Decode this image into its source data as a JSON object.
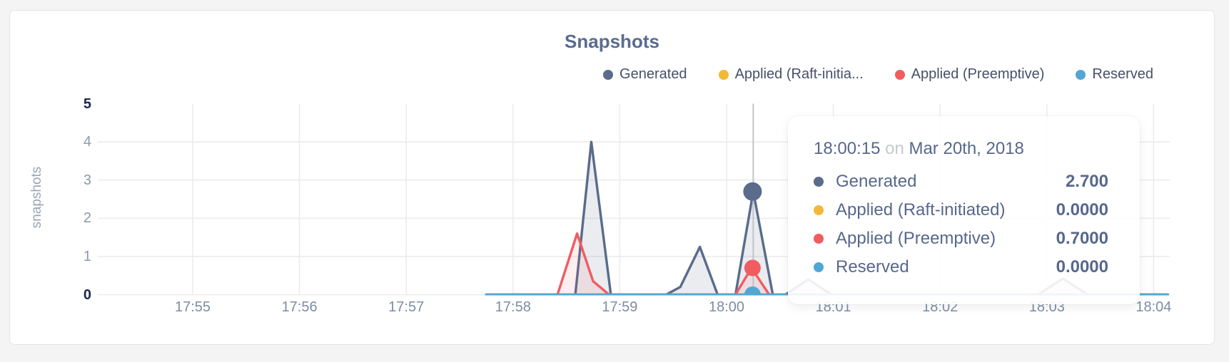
{
  "chart_card": {
    "title": "Snapshots"
  },
  "chart_data": {
    "type": "area",
    "title": "Snapshots",
    "xlabel": "",
    "ylabel": "snapshots",
    "ylim": [
      0,
      5
    ],
    "y_ticks": [
      5,
      4,
      3,
      2,
      1,
      0
    ],
    "y_ticks_bold": [
      5,
      0
    ],
    "x_ticks": [
      "17:55",
      "17:56",
      "17:57",
      "17:58",
      "17:59",
      "18:00",
      "18:01",
      "18:02",
      "18:03",
      "18:04"
    ],
    "x_units": "seconds after 17:55:00",
    "grid": "on",
    "legend_position": "top-right",
    "series": [
      {
        "name": "Generated",
        "legend_label": "Generated",
        "color": "#5a6b8c",
        "fill": "rgba(90,107,140,0.13)",
        "points": [
          [
            165,
            0
          ],
          [
            215,
            0
          ],
          [
            224,
            4.0
          ],
          [
            235,
            0
          ],
          [
            266,
            0
          ],
          [
            274,
            0.2
          ],
          [
            285,
            1.25
          ],
          [
            295,
            0
          ],
          [
            305,
            0
          ],
          [
            315,
            2.7
          ],
          [
            326,
            0
          ],
          [
            333,
            0
          ],
          [
            346,
            0.4
          ],
          [
            359,
            0
          ],
          [
            475,
            0
          ],
          [
            489,
            0.42
          ],
          [
            503,
            0
          ],
          [
            548,
            0
          ]
        ]
      },
      {
        "name": "Applied (Raft-initiated)",
        "legend_label": "Applied (Raft-initia...",
        "color": "#f2b838",
        "fill": "none",
        "points": [
          [
            165,
            0
          ],
          [
            548,
            0
          ]
        ]
      },
      {
        "name": "Applied (Preemptive)",
        "legend_label": "Applied (Preemptive)",
        "color": "#f05c60",
        "fill": "rgba(240,92,96,0.10)",
        "points": [
          [
            165,
            0
          ],
          [
            205,
            0
          ],
          [
            216,
            1.6
          ],
          [
            225,
            0.35
          ],
          [
            234,
            0
          ],
          [
            305,
            0
          ],
          [
            314,
            0.7
          ],
          [
            324,
            0
          ],
          [
            548,
            0
          ]
        ]
      },
      {
        "name": "Reserved",
        "legend_label": "Reserved",
        "color": "#51a6d4",
        "fill": "none",
        "points": [
          [
            165,
            0
          ],
          [
            548,
            0
          ]
        ]
      }
    ],
    "highlight": {
      "sec": 315,
      "points": [
        {
          "series": "Generated",
          "v": 2.7,
          "r": 13
        },
        {
          "series": "Applied (Preemptive)",
          "v": 0.7,
          "r": 11.5
        },
        {
          "series": "Reserved",
          "v": 0,
          "r": 11.5
        }
      ]
    }
  },
  "tooltip": {
    "time": "18:00:15",
    "conj": "on",
    "date": "Mar 20th, 2018",
    "rows": [
      {
        "label": "Generated",
        "value": "2.700"
      },
      {
        "label": "Applied (Raft-initiated)",
        "value": "0.0000"
      },
      {
        "label": "Applied (Preemptive)",
        "value": "0.7000"
      },
      {
        "label": "Reserved",
        "value": "0.0000"
      }
    ]
  },
  "colors": {
    "grid": "#ececec",
    "crosshair": "#c0c4ca",
    "title_text": "#5a6b8f",
    "tick_text": "#8e97a9",
    "tick_text_bold": "#1c2948"
  }
}
